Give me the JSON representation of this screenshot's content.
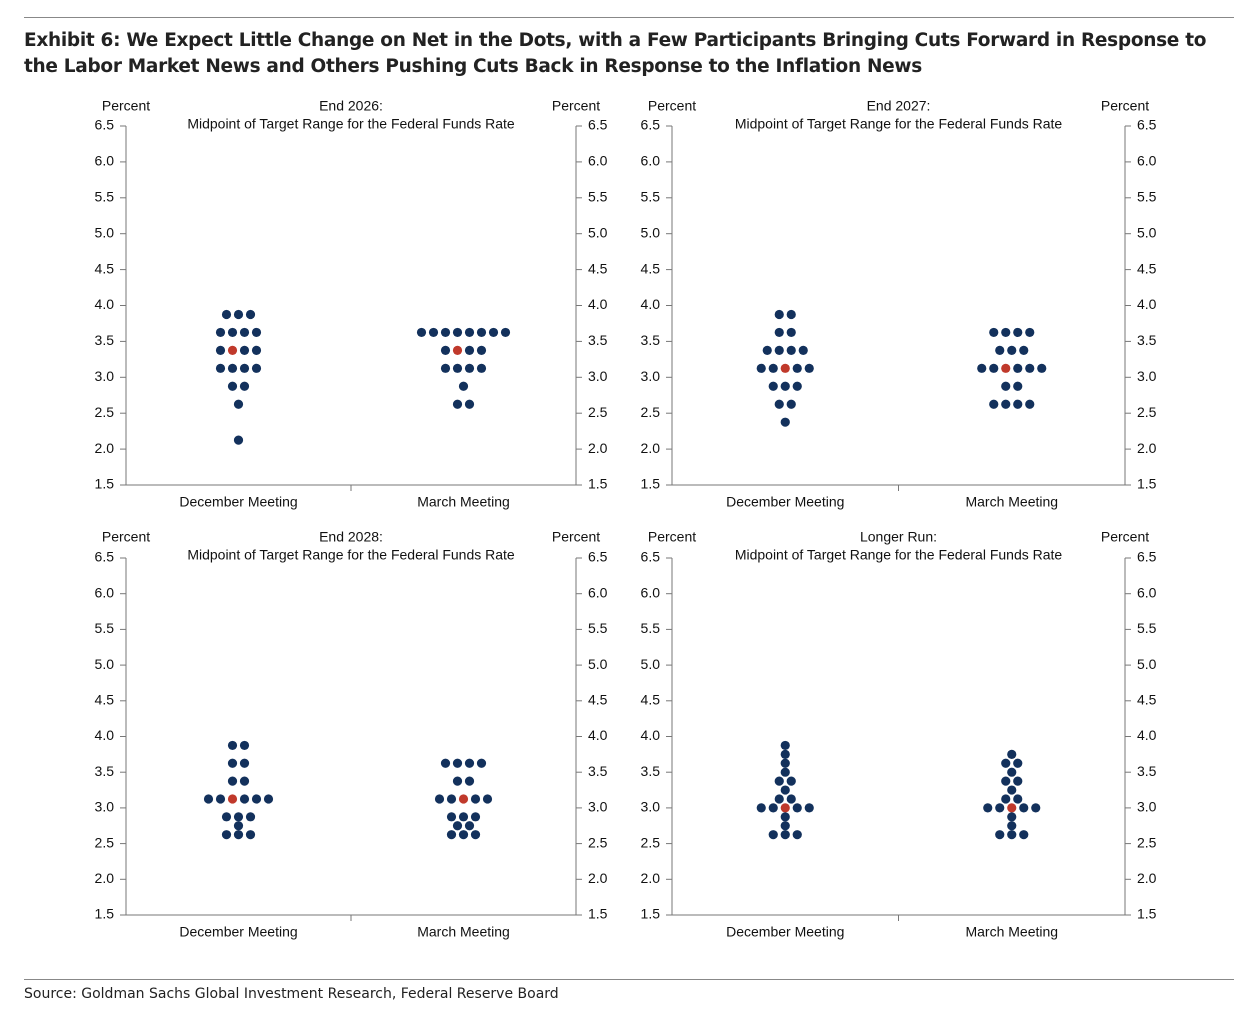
{
  "header": {
    "title": "Exhibit 6: We Expect Little Change on Net in the Dots, with a Few Participants Bringing Cuts Forward in Response to the Labor Market News and Others Pushing Cuts Back in Response to the Inflation News"
  },
  "chart_data": [
    {
      "type": "dot",
      "title": "End 2026:",
      "subtitle": "Midpoint of Target Range for the Federal Funds Rate",
      "ylabel": "Percent",
      "y2label": "Percent",
      "categories": [
        "December Meeting",
        "March Meeting"
      ],
      "values": [
        [
          3.875,
          3.875,
          3.875,
          3.625,
          3.625,
          3.625,
          3.625,
          3.375,
          3.375,
          3.375,
          3.125,
          3.125,
          3.125,
          3.125,
          2.875,
          2.875,
          2.625,
          2.125
        ],
        [
          3.625,
          3.625,
          3.625,
          3.625,
          3.625,
          3.625,
          3.625,
          3.625,
          3.375,
          3.375,
          3.375,
          3.125,
          3.125,
          3.125,
          3.125,
          2.875,
          2.625,
          2.625
        ]
      ],
      "medians": [
        3.375,
        3.375
      ],
      "color": "#13315c",
      "median_color": "#c0392b",
      "ylim": [
        1.5,
        6.5
      ],
      "yticks": [
        {
          "value": 1.5,
          "label": "1.5"
        },
        {
          "value": 2,
          "label": "2.0"
        },
        {
          "value": 2.5,
          "label": "2.5"
        },
        {
          "value": 3,
          "label": "3.0"
        },
        {
          "value": 3.5,
          "label": "3.5"
        },
        {
          "value": 4,
          "label": "4.0"
        },
        {
          "value": 4.5,
          "label": "4.5"
        },
        {
          "value": 5,
          "label": "5.0"
        },
        {
          "value": 5.5,
          "label": "5.5"
        },
        {
          "value": 6,
          "label": "6.0"
        },
        {
          "value": 6.5,
          "label": "6.5"
        }
      ]
    },
    {
      "type": "dot",
      "title": "End 2027:",
      "subtitle": "Midpoint of Target Range for the Federal Funds Rate",
      "ylabel": "Percent",
      "y2label": "Percent",
      "categories": [
        "December Meeting",
        "March Meeting"
      ],
      "values": [
        [
          3.875,
          3.875,
          3.625,
          3.625,
          3.375,
          3.375,
          3.375,
          3.375,
          3.125,
          3.125,
          3.125,
          3.125,
          2.875,
          2.875,
          2.875,
          2.625,
          2.625,
          2.375
        ],
        [
          3.625,
          3.625,
          3.625,
          3.625,
          3.375,
          3.375,
          3.375,
          3.125,
          3.125,
          3.125,
          3.125,
          3.125,
          2.875,
          2.875,
          2.625,
          2.625,
          2.625,
          2.625
        ]
      ],
      "medians": [
        3.125,
        3.125
      ],
      "color": "#13315c",
      "median_color": "#c0392b",
      "ylim": [
        1.5,
        6.5
      ],
      "yticks": [
        {
          "value": 1.5,
          "label": "1.5"
        },
        {
          "value": 2,
          "label": "2.0"
        },
        {
          "value": 2.5,
          "label": "2.5"
        },
        {
          "value": 3,
          "label": "3.0"
        },
        {
          "value": 3.5,
          "label": "3.5"
        },
        {
          "value": 4,
          "label": "4.0"
        },
        {
          "value": 4.5,
          "label": "4.5"
        },
        {
          "value": 5,
          "label": "5.0"
        },
        {
          "value": 5.5,
          "label": "5.5"
        },
        {
          "value": 6,
          "label": "6.0"
        },
        {
          "value": 6.5,
          "label": "6.5"
        }
      ]
    },
    {
      "type": "dot",
      "title": "End 2028:",
      "subtitle": "Midpoint of Target Range for the Federal Funds Rate",
      "ylabel": "Percent",
      "y2label": "Percent",
      "categories": [
        "December Meeting",
        "March Meeting"
      ],
      "values": [
        [
          3.875,
          3.875,
          3.625,
          3.625,
          3.375,
          3.375,
          3.125,
          3.125,
          3.125,
          3.125,
          3.125,
          2.875,
          2.875,
          2.875,
          2.75,
          2.625,
          2.625,
          2.625
        ],
        [
          3.625,
          3.625,
          3.625,
          3.625,
          3.375,
          3.375,
          3.125,
          3.125,
          3.125,
          3.125,
          2.875,
          2.875,
          2.875,
          2.75,
          2.75,
          2.625,
          2.625,
          2.625
        ]
      ],
      "medians": [
        3.125,
        3.125
      ],
      "color": "#13315c",
      "median_color": "#c0392b",
      "ylim": [
        1.5,
        6.5
      ],
      "yticks": [
        {
          "value": 1.5,
          "label": "1.5"
        },
        {
          "value": 2,
          "label": "2.0"
        },
        {
          "value": 2.5,
          "label": "2.5"
        },
        {
          "value": 3,
          "label": "3.0"
        },
        {
          "value": 3.5,
          "label": "3.5"
        },
        {
          "value": 4,
          "label": "4.0"
        },
        {
          "value": 4.5,
          "label": "4.5"
        },
        {
          "value": 5,
          "label": "5.0"
        },
        {
          "value": 5.5,
          "label": "5.5"
        },
        {
          "value": 6,
          "label": "6.0"
        },
        {
          "value": 6.5,
          "label": "6.5"
        }
      ]
    },
    {
      "type": "dot",
      "title": "Longer Run:",
      "subtitle": "Midpoint of Target Range for the Federal Funds Rate",
      "ylabel": "Percent",
      "y2label": "Percent",
      "categories": [
        "December Meeting",
        "March Meeting"
      ],
      "values": [
        [
          3.875,
          3.75,
          3.625,
          3.5,
          3.375,
          3.375,
          3.25,
          3.125,
          3.125,
          3,
          3,
          3,
          3,
          2.875,
          2.75,
          2.625,
          2.625,
          2.625
        ],
        [
          3.75,
          3.625,
          3.625,
          3.5,
          3.375,
          3.375,
          3.25,
          3.125,
          3.125,
          3,
          3,
          3,
          3,
          2.875,
          2.75,
          2.625,
          2.625,
          2.625
        ]
      ],
      "medians": [
        3,
        3
      ],
      "color": "#13315c",
      "median_color": "#c0392b",
      "ylim": [
        1.5,
        6.5
      ],
      "yticks": [
        {
          "value": 1.5,
          "label": "1.5"
        },
        {
          "value": 2,
          "label": "2.0"
        },
        {
          "value": 2.5,
          "label": "2.5"
        },
        {
          "value": 3,
          "label": "3.0"
        },
        {
          "value": 3.5,
          "label": "3.5"
        },
        {
          "value": 4,
          "label": "4.0"
        },
        {
          "value": 4.5,
          "label": "4.5"
        },
        {
          "value": 5,
          "label": "5.0"
        },
        {
          "value": 5.5,
          "label": "5.5"
        },
        {
          "value": 6,
          "label": "6.0"
        },
        {
          "value": 6.5,
          "label": "6.5"
        }
      ]
    }
  ],
  "source": "Source: Goldman Sachs Global Investment Research, Federal Reserve Board"
}
